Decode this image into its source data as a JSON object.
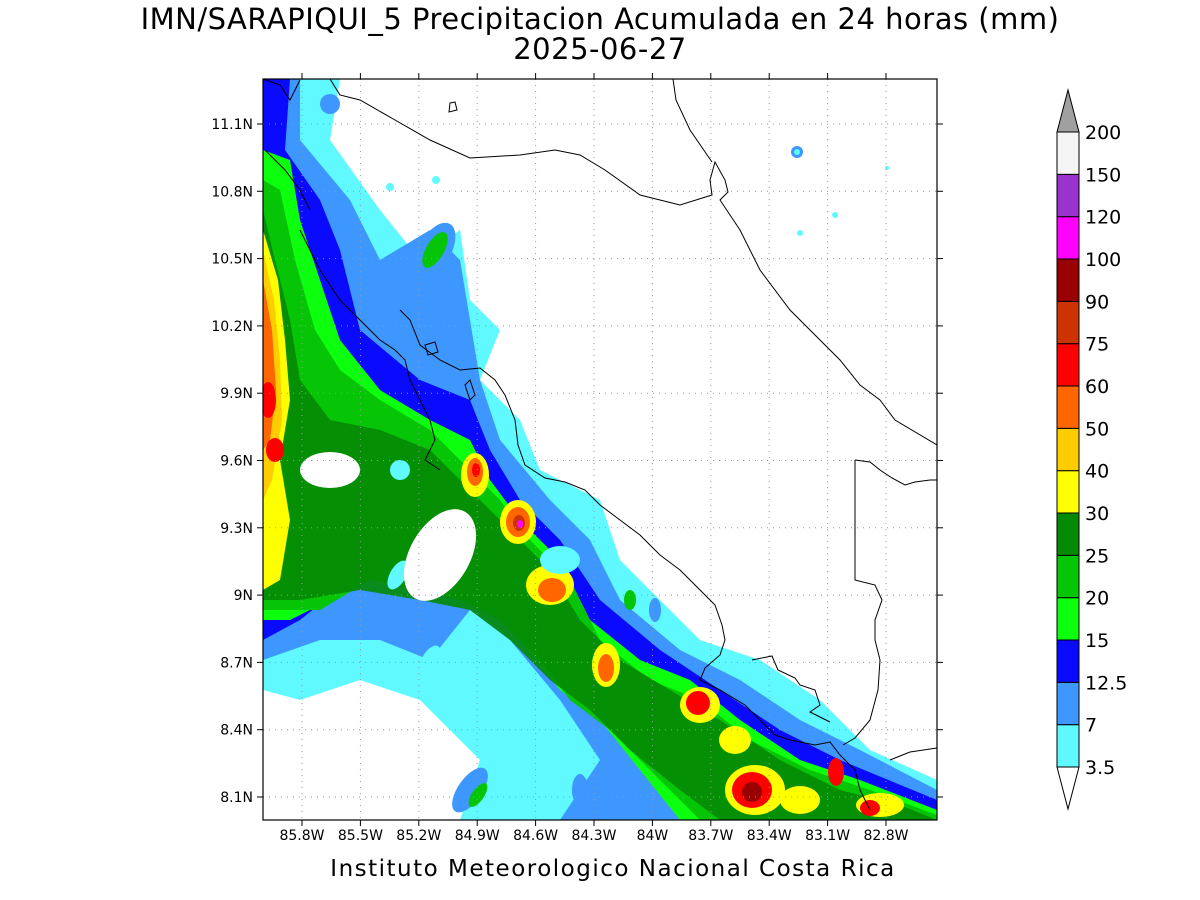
{
  "title": {
    "line1": "IMN/SARAPIQUI_5 Precipitacion Acumulada en 24 horas (mm)",
    "line2": "2025-06-27"
  },
  "footer": "Instituto Meteorologico Nacional Costa Rica",
  "map": {
    "lat_ticks": [
      "11.1N",
      "10.8N",
      "10.5N",
      "10.2N",
      "9.9N",
      "9.6N",
      "9.3N",
      "9N",
      "8.7N",
      "8.4N",
      "8.1N"
    ],
    "lon_ticks": [
      "85.8W",
      "85.5W",
      "85.2W",
      "84.9W",
      "84.6W",
      "84.3W",
      "84W",
      "83.7W",
      "83.4W",
      "83.1W",
      "82.8W"
    ],
    "grid": true
  },
  "legend": {
    "levels": [
      "3.5",
      "7",
      "12.5",
      "15",
      "20",
      "25",
      "30",
      "40",
      "50",
      "60",
      "75",
      "90",
      "100",
      "120",
      "150",
      "200"
    ],
    "colors": [
      "#5ff9ff",
      "#3e96ff",
      "#0a0aff",
      "#0cff0c",
      "#06c406",
      "#048a04",
      "#ffff00",
      "#ffcc00",
      "#ff6600",
      "#ff0000",
      "#cc3300",
      "#990000",
      "#ff00ff",
      "#9933cc",
      "#f5f5f5",
      "#a0a0a0"
    ]
  }
}
